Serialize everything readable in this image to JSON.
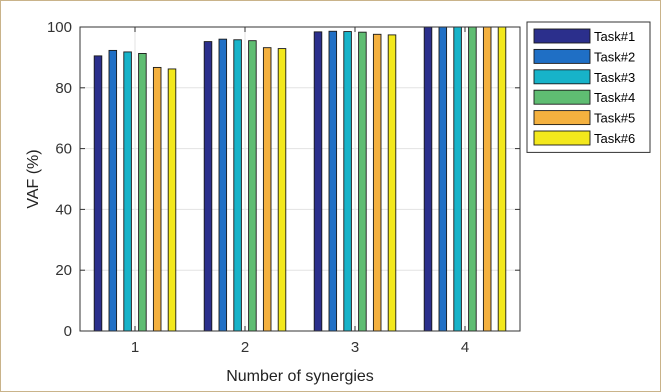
{
  "chart_data": {
    "type": "bar",
    "title": "",
    "xlabel": "Number of synergies",
    "ylabel": "VAF (%)",
    "categories": [
      "1",
      "2",
      "3",
      "4"
    ],
    "ylim": [
      0,
      100
    ],
    "yticks": [
      0,
      20,
      40,
      60,
      80,
      100
    ],
    "grid": true,
    "legend_position": "top-right",
    "series": [
      {
        "name": "Task#1",
        "color": "#2b2f8c",
        "values": [
          90.5,
          95.2,
          98.4,
          100
        ]
      },
      {
        "name": "Task#2",
        "color": "#1f6fc5",
        "values": [
          92.3,
          96.0,
          98.6,
          100
        ]
      },
      {
        "name": "Task#3",
        "color": "#17b3c9",
        "values": [
          91.8,
          95.8,
          98.5,
          100
        ]
      },
      {
        "name": "Task#4",
        "color": "#5fbd72",
        "values": [
          91.3,
          95.5,
          98.3,
          100
        ]
      },
      {
        "name": "Task#5",
        "color": "#f4b13f",
        "values": [
          86.7,
          93.2,
          97.6,
          100
        ]
      },
      {
        "name": "Task#6",
        "color": "#f3e81c",
        "values": [
          86.2,
          92.9,
          97.4,
          100
        ]
      }
    ]
  }
}
